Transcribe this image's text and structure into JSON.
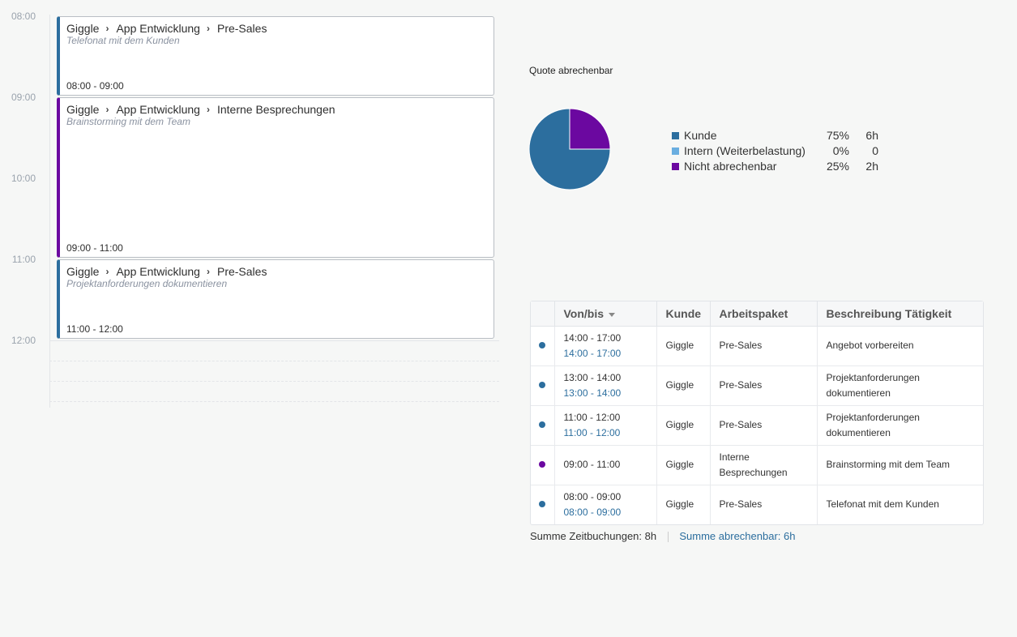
{
  "calendar": {
    "hours": [
      "08:00",
      "09:00",
      "10:00",
      "11:00",
      "12:00"
    ],
    "events": [
      {
        "customer": "Giggle",
        "project": "App Entwicklung",
        "package": "Pre-Sales",
        "description": "Telefonat mit dem Kunden",
        "time": "08:00 - 09:00",
        "color": "#2c6e9e"
      },
      {
        "customer": "Giggle",
        "project": "App Entwicklung",
        "package": "Interne Besprechungen",
        "description": "Brainstorming mit dem Team",
        "time": "09:00 - 11:00",
        "color": "#6b08a0"
      },
      {
        "customer": "Giggle",
        "project": "App Entwicklung",
        "package": "Pre-Sales",
        "description": "Projektanforderungen dokumentieren",
        "time": "11:00 - 12:00",
        "color": "#2c6e9e"
      }
    ]
  },
  "quota": {
    "title": "Quote abrechenbar",
    "legend": [
      {
        "label": "Kunde",
        "percent": "75%",
        "hours": "6h",
        "color": "#2c6e9e",
        "value": 75
      },
      {
        "label": "Intern (Weiterbelastung)",
        "percent": "0%",
        "hours": "0",
        "color": "#6aaee0",
        "value": 0
      },
      {
        "label": "Nicht abrechenbar",
        "percent": "25%",
        "hours": "2h",
        "color": "#6b08a0",
        "value": 25
      }
    ]
  },
  "table": {
    "headers": {
      "time": "Von/bis",
      "customer": "Kunde",
      "package": "Arbeitspaket",
      "description": "Beschreibung Tätigkeit"
    },
    "rows": [
      {
        "time": "14:00 - 17:00",
        "billable_time": "14:00 - 17:00",
        "customer": "Giggle",
        "package": "Pre-Sales",
        "description": "Angebot vorbereiten",
        "status_color": "#2c6e9e"
      },
      {
        "time": "13:00 - 14:00",
        "billable_time": "13:00 - 14:00",
        "customer": "Giggle",
        "package": "Pre-Sales",
        "description": "Projektanforderungen dokumentieren",
        "status_color": "#2c6e9e"
      },
      {
        "time": "11:00 - 12:00",
        "billable_time": "11:00 - 12:00",
        "customer": "Giggle",
        "package": "Pre-Sales",
        "description": "Projektanforderungen dokumentieren",
        "status_color": "#2c6e9e"
      },
      {
        "time": "09:00 - 11:00",
        "billable_time": "",
        "customer": "Giggle",
        "package": "Interne Besprechungen",
        "description": "Brainstorming mit dem Team",
        "status_color": "#6b08a0"
      },
      {
        "time": "08:00 - 09:00",
        "billable_time": "08:00 - 09:00",
        "customer": "Giggle",
        "package": "Pre-Sales",
        "description": "Telefonat mit dem Kunden",
        "status_color": "#2c6e9e"
      }
    ]
  },
  "summary": {
    "total_label": "Summe Zeitbuchungen:",
    "total_value": "8h",
    "billable_label": "Summe abrechenbar:",
    "billable_value": "6h"
  }
}
